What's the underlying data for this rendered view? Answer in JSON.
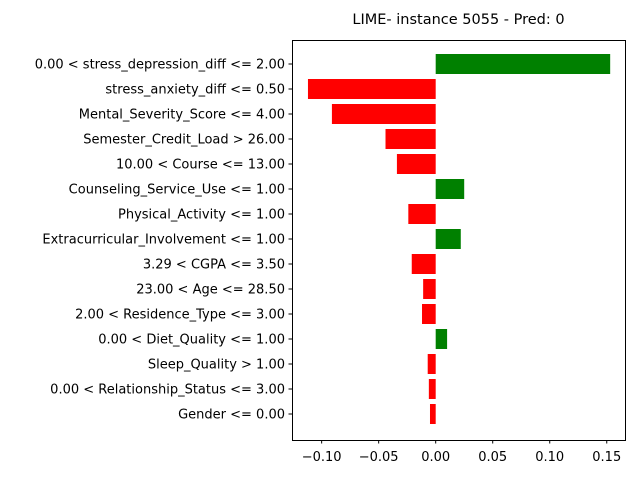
{
  "chart_data": {
    "type": "bar",
    "orientation": "horizontal",
    "title": "LIME- instance 5055 - Pred: 0",
    "xlabel": "",
    "ylabel": "",
    "xlim": [
      -0.126,
      0.166
    ],
    "grid": false,
    "positive_color": "#008000",
    "negative_color": "#ff0000",
    "x_ticks": [
      {
        "value": -0.1,
        "label": "−0.10"
      },
      {
        "value": -0.05,
        "label": "−0.05"
      },
      {
        "value": 0.0,
        "label": "0.00"
      },
      {
        "value": 0.05,
        "label": "0.05"
      },
      {
        "value": 0.1,
        "label": "0.10"
      },
      {
        "value": 0.15,
        "label": "0.15"
      }
    ],
    "categories": [
      "0.00 < stress_depression_diff <= 2.00",
      "stress_anxiety_diff <= 0.50",
      "Mental_Severity_Score <= 4.00",
      "Semester_Credit_Load > 26.00",
      "10.00 < Course <= 13.00",
      "Counseling_Service_Use <= 1.00",
      "Physical_Activity <= 1.00",
      "Extracurricular_Involvement <= 1.00",
      "3.29 < CGPA <= 3.50",
      "23.00 < Age <= 28.50",
      "2.00 < Residence_Type <= 3.00",
      "0.00 < Diet_Quality <= 1.00",
      "Sleep_Quality > 1.00",
      "0.00 < Relationship_Status <= 3.00",
      "Gender <= 0.00"
    ],
    "values": [
      0.153,
      -0.112,
      -0.091,
      -0.044,
      -0.034,
      0.025,
      -0.024,
      0.022,
      -0.021,
      -0.011,
      -0.012,
      0.01,
      -0.007,
      -0.006,
      -0.005
    ]
  }
}
